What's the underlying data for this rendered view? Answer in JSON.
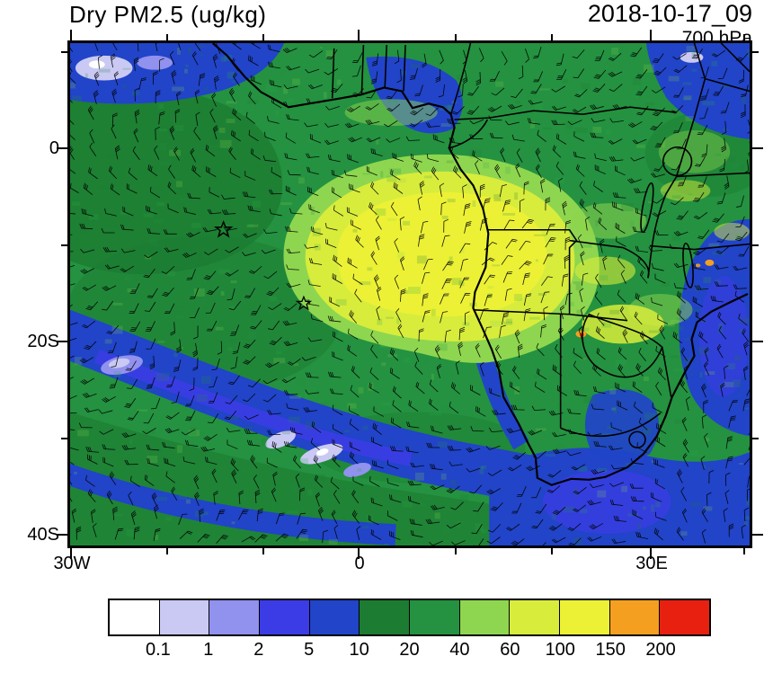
{
  "header": {
    "title": "Dry PM2.5 (ug/kg)",
    "datetime": "2018-10-17_09",
    "level": "700 hPa"
  },
  "map_axes": {
    "lat_ticks": [
      "0",
      "20S",
      "40S"
    ],
    "lon_ticks": [
      "30W",
      "0",
      "30E"
    ]
  },
  "colorbar": {
    "labels": [
      "0.1",
      "1",
      "2",
      "5",
      "10",
      "20",
      "40",
      "60",
      "100",
      "150",
      "200"
    ],
    "colors": [
      "#ffffff",
      "#c9c9f3",
      "#9191ee",
      "#3c3ce6",
      "#2144c8",
      "#1c7c31",
      "#249240",
      "#8ed64f",
      "#d8ec3c",
      "#ecf136",
      "#f59f20",
      "#e82010"
    ]
  },
  "chart_data": {
    "type": "heatmap",
    "variable": "Dry PM2.5",
    "units": "ug/kg",
    "title": "Dry PM2.5 (ug/kg)",
    "valid_time": "2018-10-17_09",
    "pressure_level_hPa": 700,
    "region": "Southern Africa and South Atlantic",
    "x_axis": {
      "label": "longitude",
      "tick_labels": [
        "30W",
        "0",
        "30E"
      ],
      "tick_values_deg": [
        -30,
        0,
        30
      ],
      "range_deg": [
        -30.5,
        41
      ]
    },
    "y_axis": {
      "label": "latitude",
      "tick_labels": [
        "0",
        "20S",
        "40S"
      ],
      "tick_values_deg": [
        0,
        -20,
        -40
      ],
      "range_deg": [
        11,
        -41.5
      ]
    },
    "contour_levels": [
      0.1,
      1,
      2,
      5,
      10,
      20,
      40,
      60,
      100,
      150,
      200
    ],
    "fill_colors": [
      "#ffffff",
      "#c9c9f3",
      "#9191ee",
      "#3c3ce6",
      "#2144c8",
      "#1c7c31",
      "#249240",
      "#8ed64f",
      "#d8ec3c",
      "#ecf136",
      "#f59f20",
      "#e82010"
    ],
    "legend_position": "bottom",
    "overlays": [
      "wind barbs at 700 hPa",
      "coastlines",
      "country borders",
      "lakes",
      "two open star markers in the South Atlantic"
    ],
    "markers": [
      {
        "symbol": "star",
        "lon_deg": -14.3,
        "lat_deg": -8.4
      },
      {
        "symbol": "star",
        "lon_deg": -5.9,
        "lat_deg": -16.1
      }
    ],
    "features": [
      {
        "name": "biomass-burning plume",
        "value_range_ug_per_kg": "60-150",
        "location": "over Angola/Congo coast and adjacent Atlantic, ~0E-25E, 3S-18S, with small orange hotspots >150 near 23E,19S and 37E,12S"
      },
      {
        "name": "clean maritime bands",
        "value_range_ug_per_kg": "1-10",
        "location": "NW corner of domain, Gulf of Guinea, South Atlantic storm track, Mozambique Channel, SE corner"
      },
      {
        "name": "background field",
        "value_range_ug_per_kg": "10-40",
        "location": "most of the remaining ocean and land, mottled greens"
      }
    ]
  }
}
